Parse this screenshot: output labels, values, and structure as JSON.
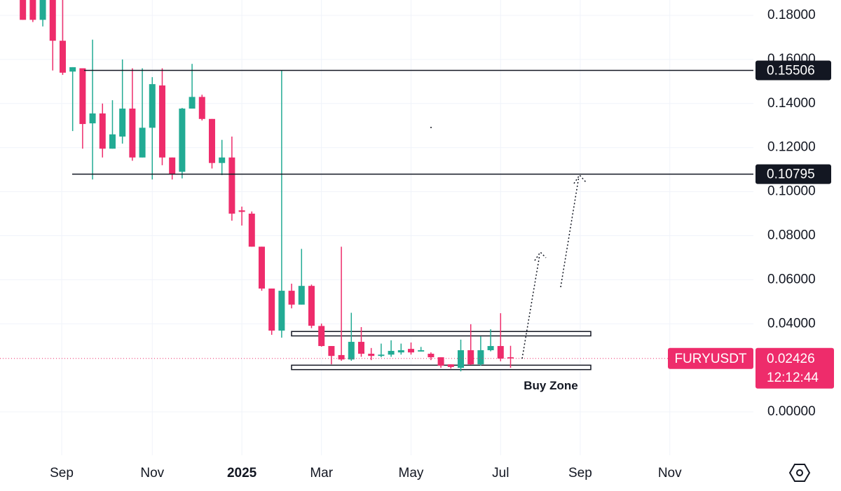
{
  "chart_data": {
    "type": "candlestick",
    "categories": [
      null,
      null,
      null,
      null,
      null,
      null,
      null,
      null,
      null,
      null,
      null,
      null,
      null,
      null,
      null,
      null,
      null,
      null,
      null,
      null,
      null,
      null,
      null,
      null,
      null,
      null,
      null,
      null,
      null,
      null,
      null,
      null,
      null,
      null,
      null,
      null,
      null,
      null,
      null,
      null,
      null,
      null,
      null,
      null,
      null,
      null,
      null,
      null,
      null,
      null
    ],
    "open": [
      0.187,
      0.187,
      0.178,
      0.187,
      0.1685,
      0.1545,
      0.156,
      0.131,
      0.1355,
      0.1195,
      0.125,
      0.1377,
      0.1155,
      0.129,
      0.1482,
      0.1155,
      0.109,
      0.1377,
      0.143,
      0.133,
      0.113,
      0.1155,
      0.0915,
      0.09,
      0.075,
      0.056,
      0.0369,
      0.055,
      0.0487,
      0.0572,
      0.039,
      0.0299,
      0.0258,
      0.0238,
      0.0318,
      0.0264,
      0.0254,
      0.026,
      0.027,
      0.0286,
      0.0274,
      0.0264,
      0.0248,
      0.0216,
      0.02,
      0.028,
      0.0216,
      0.028,
      0.0299,
      0.0248
    ],
    "high": [
      0.19,
      0.19,
      0.187,
      0.187,
      0.19,
      0.1565,
      0.156,
      0.169,
      0.14,
      0.1415,
      0.16,
      0.156,
      0.156,
      0.152,
      0.156,
      0.1155,
      0.138,
      0.158,
      0.144,
      0.133,
      0.1235,
      0.125,
      0.0932,
      0.091,
      0.075,
      0.056,
      0.1552,
      0.0582,
      0.074,
      0.0578,
      0.0401,
      0.0299,
      0.075,
      0.045,
      0.0385,
      0.029,
      0.031,
      0.0325,
      0.031,
      0.0315,
      0.0295,
      0.027,
      0.0248,
      0.0216,
      0.0328,
      0.0398,
      0.0343,
      0.0375,
      0.0448,
      0.03
    ],
    "low": [
      0.178,
      0.177,
      0.175,
      0.155,
      0.153,
      0.1275,
      0.1195,
      0.1055,
      0.1155,
      0.1195,
      0.1218,
      0.114,
      0.1155,
      0.1055,
      0.112,
      0.1055,
      0.106,
      0.1377,
      0.1323,
      0.1105,
      0.1075,
      0.0868,
      0.0846,
      0.075,
      0.055,
      0.035,
      0.0337,
      0.047,
      0.0487,
      0.038,
      0.0296,
      0.0216,
      0.0232,
      0.0232,
      0.025,
      0.0235,
      0.0248,
      0.025,
      0.026,
      0.026,
      0.0274,
      0.0235,
      0.02,
      0.0197,
      0.0184,
      0.0213,
      0.021,
      0.0275,
      0.023,
      0.02
    ],
    "close": [
      0.178,
      0.178,
      0.187,
      0.1685,
      0.154,
      0.1565,
      0.1307,
      0.1355,
      0.1195,
      0.126,
      0.1377,
      0.1155,
      0.129,
      0.1488,
      0.1155,
      0.108,
      0.1377,
      0.143,
      0.133,
      0.113,
      0.1155,
      0.09,
      0.0908,
      0.075,
      0.056,
      0.0369,
      0.055,
      0.0487,
      0.0572,
      0.0391,
      0.0299,
      0.0254,
      0.0238,
      0.0318,
      0.0264,
      0.0254,
      0.026,
      0.0277,
      0.028,
      0.027,
      0.028,
      0.0248,
      0.021,
      0.0204,
      0.028,
      0.0216,
      0.028,
      0.0299,
      0.0242,
      0.02426
    ],
    "up_color": "#22ab94",
    "down_color": "#ee2c6b",
    "xlim": [
      -2.3,
      73.4
    ],
    "xticks": [
      {
        "value": 3.9,
        "label": "Sep"
      },
      {
        "value": 13,
        "label": "Nov"
      },
      {
        "value": 22,
        "label": "2025"
      },
      {
        "value": 30,
        "label": "Mar"
      },
      {
        "value": 39,
        "label": "May"
      },
      {
        "value": 48,
        "label": "Jul"
      },
      {
        "value": 56,
        "label": "Sep"
      },
      {
        "value": 65,
        "label": "Nov"
      }
    ],
    "ylim": [
      -0.0197,
      0.187
    ],
    "yticks": [
      {
        "value": 0.18,
        "label": "0.18000"
      },
      {
        "value": 0.16,
        "label": "0.16000"
      },
      {
        "value": 0.14,
        "label": "0.14000"
      },
      {
        "value": 0.12,
        "label": "0.12000"
      },
      {
        "value": 0.1,
        "label": "0.10000"
      },
      {
        "value": 0.08,
        "label": "0.08000"
      },
      {
        "value": 0.06,
        "label": "0.06000"
      },
      {
        "value": 0.04,
        "label": "0.04000"
      },
      {
        "value": 0,
        "label": "0.00000"
      }
    ],
    "grid": true,
    "levels": [
      0.15506,
      0.10795
    ],
    "zones": [
      {
        "low": 0.0345,
        "high": 0.0365
      },
      {
        "low": 0.0192,
        "high": 0.0212,
        "label": "Buy Zone"
      }
    ],
    "last_price": {
      "symbol": "FURYUSDT",
      "value": 0.02426,
      "countdown": "12:12:44"
    }
  }
}
